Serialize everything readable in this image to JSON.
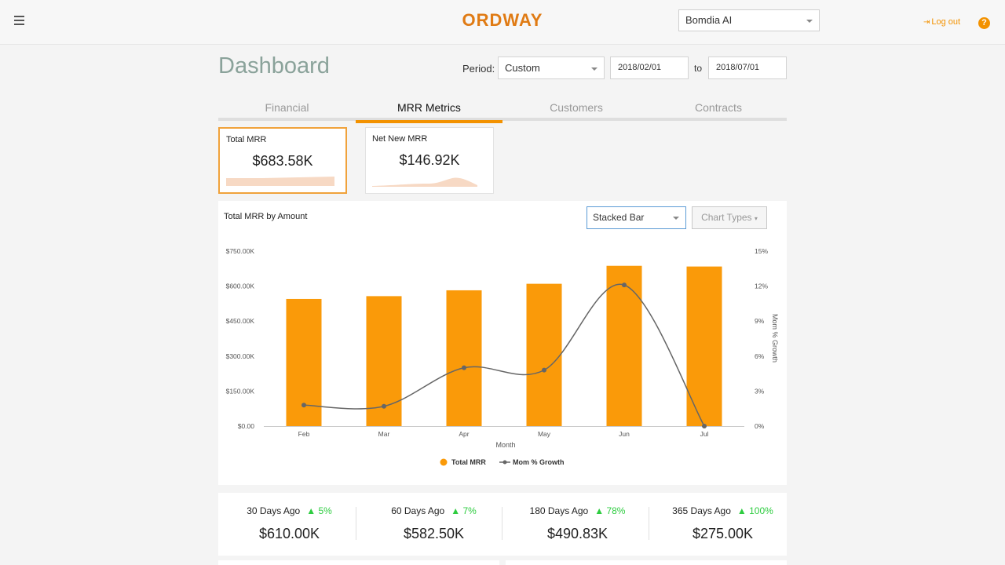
{
  "header": {
    "brand": "ORDWAY",
    "org_selected": "Bomdia AI",
    "logout_label": "Log out",
    "help_label": "?"
  },
  "page": {
    "title": "Dashboard",
    "period_label": "Period:",
    "period_value": "Custom",
    "date_from": "2018/02/01",
    "to_label": "to",
    "date_to": "2018/07/01"
  },
  "tabs": [
    {
      "label": "Financial",
      "active": false
    },
    {
      "label": "MRR Metrics",
      "active": true
    },
    {
      "label": "Customers",
      "active": false
    },
    {
      "label": "Contracts",
      "active": false
    }
  ],
  "kpis": [
    {
      "label": "Total MRR",
      "value": "$683.58K",
      "selected": true
    },
    {
      "label": "Net New MRR",
      "value": "$146.92K",
      "selected": false
    }
  ],
  "chart_controls": {
    "title": "Total MRR by Amount",
    "chart_type": "Stacked Bar",
    "chart_types_button": "Chart Types"
  },
  "chart_data": {
    "type": "bar",
    "title": "Total MRR by Amount",
    "xlabel": "Month",
    "ylabel": "",
    "y2label": "Mom % Growth",
    "categories": [
      "Feb",
      "Mar",
      "Apr",
      "May",
      "Jun",
      "Jul"
    ],
    "ylim": [
      0,
      750000
    ],
    "y_ticks": [
      "$0.00",
      "$150.00K",
      "$300.00K",
      "$450.00K",
      "$600.00K",
      "$750.00K"
    ],
    "y2lim": [
      0,
      15
    ],
    "y2_ticks": [
      "0%",
      "3%",
      "6%",
      "9%",
      "12%",
      "15%"
    ],
    "series": [
      {
        "name": "Total MRR",
        "kind": "bar",
        "axis": "left",
        "color": "#fa9a09",
        "values": [
          545000,
          557000,
          582000,
          610000,
          687000,
          684000
        ]
      },
      {
        "name": "Mom % Growth",
        "kind": "line",
        "axis": "right",
        "color": "#666666",
        "values": [
          1.8,
          1.7,
          5.0,
          4.8,
          12.1,
          0.0
        ]
      }
    ],
    "legend": "bottom",
    "grid": false
  },
  "comparisons": [
    {
      "label": "30 Days Ago",
      "delta": "5%",
      "value": "$610.00K"
    },
    {
      "label": "60 Days Ago",
      "delta": "7%",
      "value": "$582.50K"
    },
    {
      "label": "180 Days Ago",
      "delta": "78%",
      "value": "$490.83K"
    },
    {
      "label": "365 Days Ago",
      "delta": "100%",
      "value": "$275.00K"
    }
  ],
  "colors": {
    "accent": "#f39200",
    "bar": "#fa9a09",
    "positive": "#2ecc40",
    "title": "#8aa29a"
  }
}
